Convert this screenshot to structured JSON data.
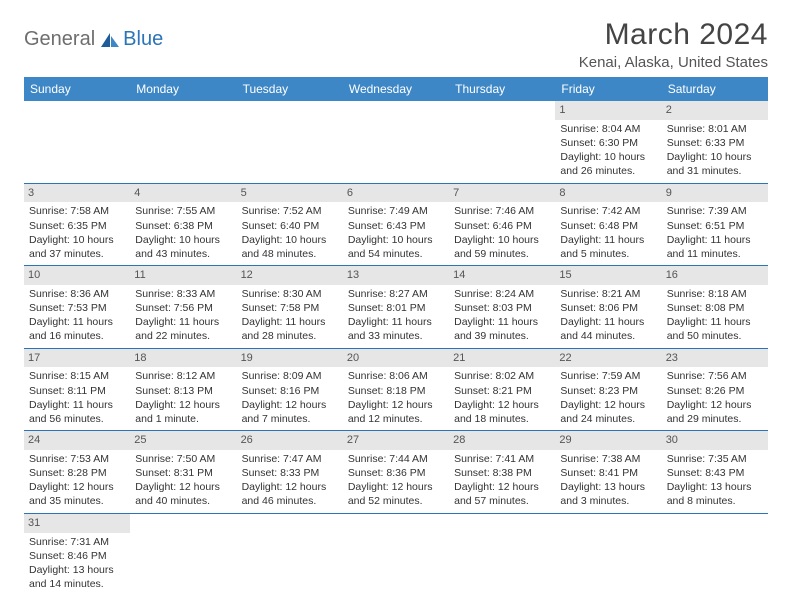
{
  "brand": {
    "part1": "General",
    "part2": "Blue"
  },
  "title": "March 2024",
  "location": "Kenai, Alaska, United States",
  "header_bg": "#3e87c6",
  "header_fg": "#ffffff",
  "row_divider": "#2a74b8",
  "daynum_bg": "#e6e6e6",
  "day_headers": [
    "Sunday",
    "Monday",
    "Tuesday",
    "Wednesday",
    "Thursday",
    "Friday",
    "Saturday"
  ],
  "weeks": [
    [
      null,
      null,
      null,
      null,
      null,
      {
        "n": "1",
        "sr": "Sunrise: 8:04 AM",
        "ss": "Sunset: 6:30 PM",
        "dl": "Daylight: 10 hours and 26 minutes."
      },
      {
        "n": "2",
        "sr": "Sunrise: 8:01 AM",
        "ss": "Sunset: 6:33 PM",
        "dl": "Daylight: 10 hours and 31 minutes."
      }
    ],
    [
      {
        "n": "3",
        "sr": "Sunrise: 7:58 AM",
        "ss": "Sunset: 6:35 PM",
        "dl": "Daylight: 10 hours and 37 minutes."
      },
      {
        "n": "4",
        "sr": "Sunrise: 7:55 AM",
        "ss": "Sunset: 6:38 PM",
        "dl": "Daylight: 10 hours and 43 minutes."
      },
      {
        "n": "5",
        "sr": "Sunrise: 7:52 AM",
        "ss": "Sunset: 6:40 PM",
        "dl": "Daylight: 10 hours and 48 minutes."
      },
      {
        "n": "6",
        "sr": "Sunrise: 7:49 AM",
        "ss": "Sunset: 6:43 PM",
        "dl": "Daylight: 10 hours and 54 minutes."
      },
      {
        "n": "7",
        "sr": "Sunrise: 7:46 AM",
        "ss": "Sunset: 6:46 PM",
        "dl": "Daylight: 10 hours and 59 minutes."
      },
      {
        "n": "8",
        "sr": "Sunrise: 7:42 AM",
        "ss": "Sunset: 6:48 PM",
        "dl": "Daylight: 11 hours and 5 minutes."
      },
      {
        "n": "9",
        "sr": "Sunrise: 7:39 AM",
        "ss": "Sunset: 6:51 PM",
        "dl": "Daylight: 11 hours and 11 minutes."
      }
    ],
    [
      {
        "n": "10",
        "sr": "Sunrise: 8:36 AM",
        "ss": "Sunset: 7:53 PM",
        "dl": "Daylight: 11 hours and 16 minutes."
      },
      {
        "n": "11",
        "sr": "Sunrise: 8:33 AM",
        "ss": "Sunset: 7:56 PM",
        "dl": "Daylight: 11 hours and 22 minutes."
      },
      {
        "n": "12",
        "sr": "Sunrise: 8:30 AM",
        "ss": "Sunset: 7:58 PM",
        "dl": "Daylight: 11 hours and 28 minutes."
      },
      {
        "n": "13",
        "sr": "Sunrise: 8:27 AM",
        "ss": "Sunset: 8:01 PM",
        "dl": "Daylight: 11 hours and 33 minutes."
      },
      {
        "n": "14",
        "sr": "Sunrise: 8:24 AM",
        "ss": "Sunset: 8:03 PM",
        "dl": "Daylight: 11 hours and 39 minutes."
      },
      {
        "n": "15",
        "sr": "Sunrise: 8:21 AM",
        "ss": "Sunset: 8:06 PM",
        "dl": "Daylight: 11 hours and 44 minutes."
      },
      {
        "n": "16",
        "sr": "Sunrise: 8:18 AM",
        "ss": "Sunset: 8:08 PM",
        "dl": "Daylight: 11 hours and 50 minutes."
      }
    ],
    [
      {
        "n": "17",
        "sr": "Sunrise: 8:15 AM",
        "ss": "Sunset: 8:11 PM",
        "dl": "Daylight: 11 hours and 56 minutes."
      },
      {
        "n": "18",
        "sr": "Sunrise: 8:12 AM",
        "ss": "Sunset: 8:13 PM",
        "dl": "Daylight: 12 hours and 1 minute."
      },
      {
        "n": "19",
        "sr": "Sunrise: 8:09 AM",
        "ss": "Sunset: 8:16 PM",
        "dl": "Daylight: 12 hours and 7 minutes."
      },
      {
        "n": "20",
        "sr": "Sunrise: 8:06 AM",
        "ss": "Sunset: 8:18 PM",
        "dl": "Daylight: 12 hours and 12 minutes."
      },
      {
        "n": "21",
        "sr": "Sunrise: 8:02 AM",
        "ss": "Sunset: 8:21 PM",
        "dl": "Daylight: 12 hours and 18 minutes."
      },
      {
        "n": "22",
        "sr": "Sunrise: 7:59 AM",
        "ss": "Sunset: 8:23 PM",
        "dl": "Daylight: 12 hours and 24 minutes."
      },
      {
        "n": "23",
        "sr": "Sunrise: 7:56 AM",
        "ss": "Sunset: 8:26 PM",
        "dl": "Daylight: 12 hours and 29 minutes."
      }
    ],
    [
      {
        "n": "24",
        "sr": "Sunrise: 7:53 AM",
        "ss": "Sunset: 8:28 PM",
        "dl": "Daylight: 12 hours and 35 minutes."
      },
      {
        "n": "25",
        "sr": "Sunrise: 7:50 AM",
        "ss": "Sunset: 8:31 PM",
        "dl": "Daylight: 12 hours and 40 minutes."
      },
      {
        "n": "26",
        "sr": "Sunrise: 7:47 AM",
        "ss": "Sunset: 8:33 PM",
        "dl": "Daylight: 12 hours and 46 minutes."
      },
      {
        "n": "27",
        "sr": "Sunrise: 7:44 AM",
        "ss": "Sunset: 8:36 PM",
        "dl": "Daylight: 12 hours and 52 minutes."
      },
      {
        "n": "28",
        "sr": "Sunrise: 7:41 AM",
        "ss": "Sunset: 8:38 PM",
        "dl": "Daylight: 12 hours and 57 minutes."
      },
      {
        "n": "29",
        "sr": "Sunrise: 7:38 AM",
        "ss": "Sunset: 8:41 PM",
        "dl": "Daylight: 13 hours and 3 minutes."
      },
      {
        "n": "30",
        "sr": "Sunrise: 7:35 AM",
        "ss": "Sunset: 8:43 PM",
        "dl": "Daylight: 13 hours and 8 minutes."
      }
    ],
    [
      {
        "n": "31",
        "sr": "Sunrise: 7:31 AM",
        "ss": "Sunset: 8:46 PM",
        "dl": "Daylight: 13 hours and 14 minutes."
      },
      null,
      null,
      null,
      null,
      null,
      null
    ]
  ]
}
